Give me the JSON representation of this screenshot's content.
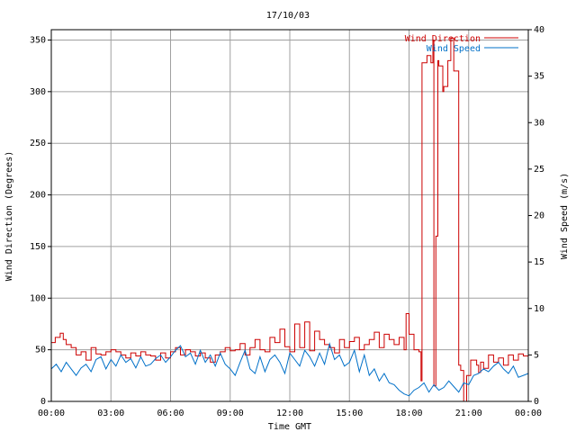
{
  "chart_data": {
    "type": "line",
    "title": "17/10/03",
    "xlabel": "Time GMT",
    "ylabel": "Wind Direction (Degrees)",
    "y2label": "Wind Speed (m/s)",
    "x_unit": "hours GMT",
    "xlim": [
      0,
      24
    ],
    "ylim": [
      0,
      360
    ],
    "y2lim": [
      0,
      40
    ],
    "grid": true,
    "legend_position": "top-right",
    "x_ticks": [
      {
        "value": 0,
        "label": "00:00"
      },
      {
        "value": 3,
        "label": "03:00"
      },
      {
        "value": 6,
        "label": "06:00"
      },
      {
        "value": 9,
        "label": "09:00"
      },
      {
        "value": 12,
        "label": "12:00"
      },
      {
        "value": 15,
        "label": "15:00"
      },
      {
        "value": 18,
        "label": "18:00"
      },
      {
        "value": 21,
        "label": "21:00"
      },
      {
        "value": 24,
        "label": "00:00"
      }
    ],
    "y_ticks": [
      {
        "value": 0,
        "label": "0"
      },
      {
        "value": 50,
        "label": "50"
      },
      {
        "value": 100,
        "label": "100"
      },
      {
        "value": 150,
        "label": "150"
      },
      {
        "value": 200,
        "label": "200"
      },
      {
        "value": 250,
        "label": "250"
      },
      {
        "value": 300,
        "label": "300"
      },
      {
        "value": 350,
        "label": "350"
      }
    ],
    "y2_ticks": [
      {
        "value": 0,
        "label": "0"
      },
      {
        "value": 5,
        "label": "5"
      },
      {
        "value": 10,
        "label": "10"
      },
      {
        "value": 15,
        "label": "15"
      },
      {
        "value": 20,
        "label": "20"
      },
      {
        "value": 25,
        "label": "25"
      },
      {
        "value": 30,
        "label": "30"
      },
      {
        "value": 35,
        "label": "35"
      },
      {
        "value": 40,
        "label": "40"
      }
    ],
    "series": [
      {
        "name": "Wind Direction",
        "axis": "left",
        "color": "#cc0000",
        "step": true,
        "x": [
          0.0,
          0.2,
          0.45,
          0.6,
          0.75,
          1.0,
          1.25,
          1.5,
          1.75,
          2.0,
          2.25,
          2.5,
          2.75,
          3.0,
          3.25,
          3.5,
          3.75,
          4.0,
          4.25,
          4.5,
          4.75,
          5.0,
          5.25,
          5.5,
          5.75,
          6.0,
          6.25,
          6.5,
          6.75,
          7.0,
          7.25,
          7.5,
          7.75,
          8.0,
          8.25,
          8.5,
          8.75,
          9.0,
          9.25,
          9.5,
          9.75,
          10.0,
          10.25,
          10.5,
          10.75,
          11.0,
          11.25,
          11.5,
          11.75,
          12.0,
          12.25,
          12.5,
          12.75,
          13.0,
          13.25,
          13.5,
          13.75,
          14.0,
          14.25,
          14.5,
          14.75,
          15.0,
          15.25,
          15.5,
          15.75,
          16.0,
          16.25,
          16.5,
          16.75,
          17.0,
          17.25,
          17.5,
          17.75,
          17.85,
          18.0,
          18.25,
          18.5,
          18.6,
          18.65,
          18.9,
          19.1,
          19.2,
          19.25,
          19.35,
          19.45,
          19.5,
          19.7,
          19.75,
          19.95,
          20.1,
          20.25,
          20.5,
          20.6,
          20.75,
          20.9,
          21.1,
          21.4,
          21.5,
          21.6,
          21.75,
          22.0,
          22.25,
          22.5,
          22.75,
          23.0,
          23.25,
          23.5,
          23.75,
          24.0
        ],
        "values": [
          57,
          62,
          66,
          60,
          55,
          52,
          45,
          48,
          40,
          52,
          46,
          45,
          48,
          50,
          48,
          45,
          42,
          47,
          44,
          48,
          45,
          44,
          40,
          47,
          42,
          48,
          52,
          45,
          50,
          48,
          44,
          47,
          42,
          38,
          45,
          48,
          52,
          49,
          50,
          56,
          45,
          52,
          60,
          50,
          48,
          62,
          57,
          70,
          53,
          48,
          75,
          52,
          77,
          49,
          68,
          60,
          55,
          52,
          47,
          60,
          52,
          58,
          62,
          50,
          55,
          60,
          67,
          52,
          65,
          60,
          55,
          62,
          50,
          85,
          65,
          50,
          48,
          20,
          328,
          335,
          328,
          350,
          15,
          160,
          330,
          325,
          300,
          305,
          330,
          352,
          320,
          35,
          30,
          0,
          25,
          40,
          35,
          28,
          38,
          32,
          45,
          38,
          42,
          35,
          45,
          40,
          46,
          44,
          40
        ]
      },
      {
        "name": "Wind Speed",
        "axis": "right",
        "color": "#0070c8",
        "step": false,
        "x": [
          0.0,
          0.25,
          0.5,
          0.75,
          1.0,
          1.25,
          1.5,
          1.75,
          2.0,
          2.25,
          2.5,
          2.75,
          3.0,
          3.25,
          3.5,
          3.75,
          4.0,
          4.25,
          4.5,
          4.75,
          5.0,
          5.25,
          5.5,
          5.75,
          6.0,
          6.25,
          6.5,
          6.75,
          7.0,
          7.25,
          7.5,
          7.75,
          8.0,
          8.25,
          8.5,
          8.75,
          9.0,
          9.25,
          9.5,
          9.75,
          10.0,
          10.25,
          10.5,
          10.75,
          11.0,
          11.25,
          11.5,
          11.75,
          12.0,
          12.25,
          12.5,
          12.75,
          13.0,
          13.25,
          13.5,
          13.75,
          14.0,
          14.25,
          14.5,
          14.75,
          15.0,
          15.25,
          15.5,
          15.75,
          16.0,
          16.25,
          16.5,
          16.75,
          17.0,
          17.25,
          17.5,
          17.75,
          18.0,
          18.25,
          18.5,
          18.75,
          19.0,
          19.25,
          19.5,
          19.75,
          20.0,
          20.25,
          20.5,
          20.75,
          21.0,
          21.25,
          21.5,
          21.75,
          22.0,
          22.25,
          22.5,
          22.75,
          23.0,
          23.25,
          23.5,
          23.75,
          24.0
        ],
        "values": [
          3.5,
          4.0,
          3.2,
          4.2,
          3.5,
          2.8,
          3.6,
          4.0,
          3.2,
          4.5,
          4.8,
          3.5,
          4.5,
          3.8,
          5.0,
          4.2,
          4.6,
          3.6,
          4.8,
          3.8,
          4.0,
          4.6,
          5.0,
          4.2,
          4.8,
          5.5,
          6.0,
          4.8,
          5.2,
          4.0,
          5.5,
          4.2,
          5.0,
          3.8,
          5.2,
          4.0,
          3.5,
          2.8,
          4.2,
          5.5,
          3.5,
          3.0,
          4.8,
          3.2,
          4.5,
          5.0,
          4.2,
          3.0,
          5.2,
          4.5,
          3.8,
          5.5,
          4.8,
          3.8,
          5.2,
          4.0,
          6.2,
          4.5,
          5.0,
          3.8,
          4.2,
          5.5,
          3.2,
          5.0,
          2.8,
          3.5,
          2.2,
          3.0,
          2.0,
          1.8,
          1.2,
          0.8,
          0.6,
          1.2,
          1.5,
          2.0,
          1.0,
          1.8,
          1.2,
          1.5,
          2.2,
          1.6,
          1.0,
          2.0,
          1.8,
          2.8,
          3.0,
          3.5,
          3.2,
          3.8,
          4.2,
          3.5,
          3.0,
          3.8,
          2.6,
          2.8,
          3.0
        ]
      }
    ]
  }
}
